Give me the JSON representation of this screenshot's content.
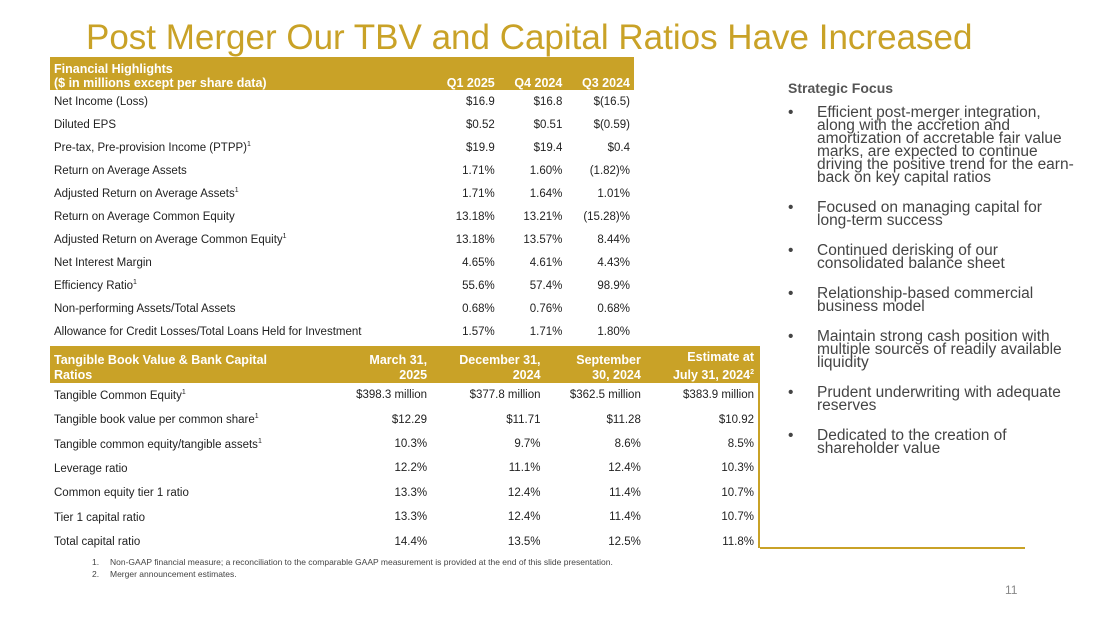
{
  "title": "Post Merger Our TBV and Capital Ratios Have Increased",
  "highlights": {
    "header_line1": "Financial Highlights",
    "header_line2": "($ in millions except per share data)",
    "columns": [
      "Q1 2025",
      "Q4 2024",
      "Q3 2024"
    ],
    "rows": [
      {
        "label": "Net Income (Loss)",
        "sup": "",
        "values": [
          "$16.9",
          "$16.8",
          "$(16.5)"
        ]
      },
      {
        "label": "Diluted EPS",
        "sup": "",
        "values": [
          "$0.52",
          "$0.51",
          "$(0.59)"
        ]
      },
      {
        "label": "Pre-tax, Pre-provision Income (PTPP)",
        "sup": "1",
        "values": [
          "$19.9",
          "$19.4",
          "$0.4"
        ]
      },
      {
        "label": "Return on Average Assets",
        "sup": "",
        "values": [
          "1.71%",
          "1.60%",
          "(1.82)%"
        ]
      },
      {
        "label": "Adjusted Return on Average Assets",
        "sup": "1",
        "values": [
          "1.71%",
          "1.64%",
          "1.01%"
        ]
      },
      {
        "label": "Return on Average Common Equity",
        "sup": "",
        "values": [
          "13.18%",
          "13.21%",
          "(15.28)%"
        ]
      },
      {
        "label": "Adjusted Return on Average Common Equity",
        "sup": "1",
        "values": [
          "13.18%",
          "13.57%",
          "8.44%"
        ]
      },
      {
        "label": "Net Interest Margin",
        "sup": "",
        "values": [
          "4.65%",
          "4.61%",
          "4.43%"
        ]
      },
      {
        "label": "Efficiency Ratio",
        "sup": "1",
        "values": [
          "55.6%",
          "57.4%",
          "98.9%"
        ]
      },
      {
        "label": "Non-performing Assets/Total Assets",
        "sup": "",
        "values": [
          "0.68%",
          "0.76%",
          "0.68%"
        ]
      },
      {
        "label": "Allowance for Credit Losses/Total Loans Held for Investment",
        "sup": "",
        "values": [
          "1.57%",
          "1.71%",
          "1.80%"
        ]
      }
    ]
  },
  "capital": {
    "header_line1": "Tangible Book Value & Bank Capital",
    "header_line2": "Ratios",
    "columns": [
      {
        "line1": "March 31,",
        "line2": "2025",
        "sup": ""
      },
      {
        "line1": "December 31,",
        "line2": "2024",
        "sup": ""
      },
      {
        "line1": "September",
        "line2": "30, 2024",
        "sup": ""
      },
      {
        "line1": "Estimate at",
        "line2": "July 31, 2024",
        "sup": "2"
      }
    ],
    "rows": [
      {
        "label": "Tangible Common Equity",
        "sup": "1",
        "values": [
          "$398.3 million",
          "$377.8 million",
          "$362.5 million",
          "$383.9 million"
        ]
      },
      {
        "label": "Tangible book value per common share",
        "sup": "1",
        "values": [
          "$12.29",
          "$11.71",
          "$11.28",
          "$10.92"
        ]
      },
      {
        "label": "Tangible common equity/tangible assets",
        "sup": "1",
        "values": [
          "10.3%",
          "9.7%",
          "8.6%",
          "8.5%"
        ]
      },
      {
        "label": "Leverage ratio",
        "sup": "",
        "values": [
          "12.2%",
          "11.1%",
          "12.4%",
          "10.3%"
        ]
      },
      {
        "label": "Common equity tier 1 ratio",
        "sup": "",
        "values": [
          "13.3%",
          "12.4%",
          "11.4%",
          "10.7%"
        ]
      },
      {
        "label": "Tier 1 capital ratio",
        "sup": "",
        "values": [
          "13.3%",
          "12.4%",
          "11.4%",
          "10.7%"
        ]
      },
      {
        "label": "Total capital ratio",
        "sup": "",
        "values": [
          "14.4%",
          "13.5%",
          "12.5%",
          "11.8%"
        ]
      }
    ]
  },
  "strategic": {
    "heading": "Strategic Focus",
    "bullet_char": "•",
    "items": [
      "Efficient post-merger integration, along with the accretion and amortization of accretable fair value marks, are expected to continue driving the positive trend for the earn-back on key capital ratios",
      "Focused on managing capital for long-term success",
      "Continued derisking of our consolidated balance sheet",
      "Relationship-based commercial business model",
      "Maintain strong cash position with multiple sources of readily available liquidity",
      "Prudent underwriting with adequate reserves",
      "Dedicated to the creation of shareholder value"
    ]
  },
  "footnotes": [
    {
      "num": "1.",
      "text": "Non-GAAP financial measure; a reconciliation to the comparable GAAP measurement is provided at the end of this slide presentation."
    },
    {
      "num": "2.",
      "text": "Merger announcement estimates."
    }
  ],
  "page_number": "11",
  "colors": {
    "accent": "#c9a227"
  }
}
